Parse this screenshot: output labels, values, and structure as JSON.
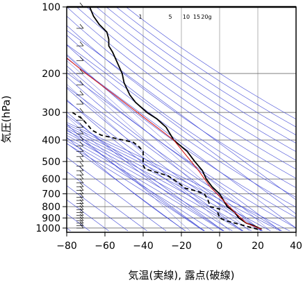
{
  "chart_data": {
    "type": "line",
    "xlabel": "気温(実線), 露点(破線)",
    "ylabel": "気圧(hPa)",
    "xlim": [
      -80,
      40
    ],
    "ylim": [
      1030,
      100
    ],
    "yscale": "log",
    "grid": true,
    "x_ticks": [
      {
        "value": -80,
        "label": "−80"
      },
      {
        "value": -60,
        "label": "−60"
      },
      {
        "value": -40,
        "label": "−40"
      },
      {
        "value": -20,
        "label": "−20"
      },
      {
        "value": 0,
        "label": "0"
      },
      {
        "value": 20,
        "label": "20"
      },
      {
        "value": 40,
        "label": "40"
      }
    ],
    "y_ticks": [
      {
        "value": 100,
        "label": "100"
      },
      {
        "value": 200,
        "label": "200"
      },
      {
        "value": 300,
        "label": "300"
      },
      {
        "value": 400,
        "label": "400"
      },
      {
        "value": 500,
        "label": "500"
      },
      {
        "value": 600,
        "label": "600"
      },
      {
        "value": 700,
        "label": "700"
      },
      {
        "value": 800,
        "label": "800"
      },
      {
        "value": 900,
        "label": "900"
      },
      {
        "value": 1000,
        "label": "1000"
      }
    ],
    "mixing_ratio_labels": [
      "1",
      "5",
      "10",
      "15",
      "20g"
    ],
    "series": [
      {
        "style": "solid",
        "color": "#000000",
        "points": [
          [
            22,
            1013
          ],
          [
            18,
            975
          ],
          [
            14,
            950
          ],
          [
            10,
            900
          ],
          [
            8,
            850
          ],
          [
            4,
            800
          ],
          [
            0,
            700
          ],
          [
            -4,
            650
          ],
          [
            -7,
            600
          ],
          [
            -9,
            550
          ],
          [
            -13,
            500
          ],
          [
            -17,
            450
          ],
          [
            -24,
            400
          ],
          [
            -28,
            350
          ],
          [
            -33,
            320
          ],
          [
            -38,
            300
          ],
          [
            -44,
            270
          ],
          [
            -47,
            250
          ],
          [
            -50,
            220
          ],
          [
            -51,
            200
          ],
          [
            -56,
            160
          ],
          [
            -58,
            150
          ],
          [
            -58,
            140
          ],
          [
            -59,
            130
          ],
          [
            -63,
            120
          ],
          [
            -66,
            110
          ],
          [
            -68,
            100
          ]
        ]
      },
      {
        "style": "dashed",
        "color": "#000000",
        "points": [
          [
            20,
            1013
          ],
          [
            13,
            975
          ],
          [
            8,
            950
          ],
          [
            3,
            925
          ],
          [
            0,
            900
          ],
          [
            -1,
            850
          ],
          [
            0,
            820
          ],
          [
            -5,
            800
          ],
          [
            -6,
            750
          ],
          [
            -8,
            700
          ],
          [
            -12,
            680
          ],
          [
            -18,
            660
          ],
          [
            -21,
            630
          ],
          [
            -27,
            580
          ],
          [
            -36,
            550
          ],
          [
            -39,
            540
          ],
          [
            -40,
            520
          ],
          [
            -40,
            450
          ],
          [
            -42,
            430
          ],
          [
            -45,
            410
          ],
          [
            -62,
            380
          ],
          [
            -67,
            360
          ],
          [
            -68,
            350
          ],
          [
            -72,
            320
          ],
          [
            -77,
            300
          ]
        ]
      },
      {
        "style": "solid",
        "color": "#d81b1b",
        "points": [
          [
            22,
            1013
          ],
          [
            14,
            950
          ],
          [
            8,
            850
          ],
          [
            2,
            750
          ],
          [
            -5,
            650
          ],
          [
            -11,
            550
          ],
          [
            -24,
            400
          ],
          [
            -43,
            300
          ],
          [
            -55,
            250
          ],
          [
            -70,
            200
          ],
          [
            -80,
            170
          ]
        ]
      }
    ]
  }
}
